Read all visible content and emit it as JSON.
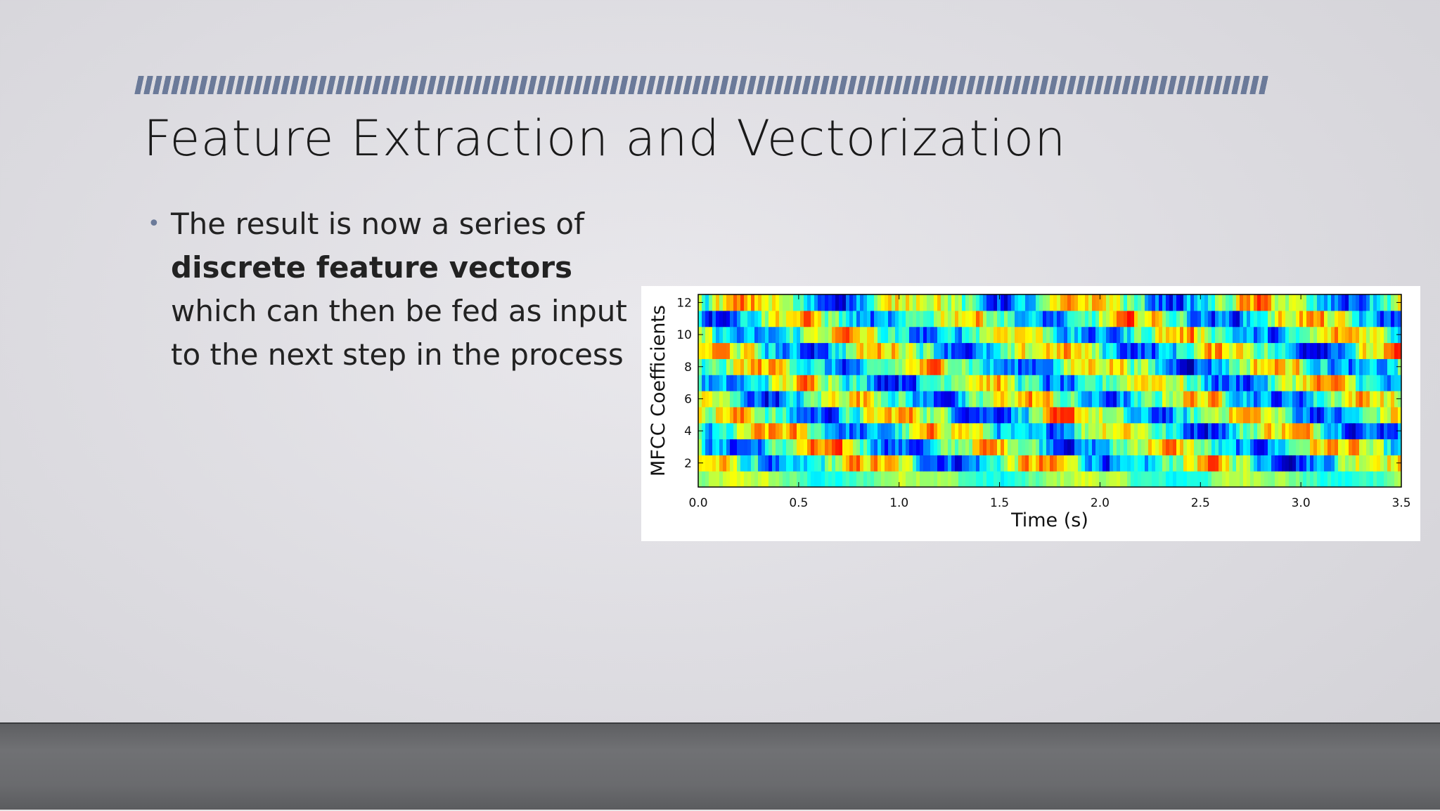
{
  "slide": {
    "title": "Feature Extraction and Vectorization",
    "bullet": {
      "pre": "The result is now a series of",
      "bold": "discrete feature vectors",
      "post": "which can then be fed as input to the next step in the process"
    }
  },
  "chart_data": {
    "type": "heatmap",
    "xlabel": "Time (s)",
    "ylabel": "MFCC Coefficients",
    "xlim": [
      0.0,
      3.5
    ],
    "ylim": [
      0.5,
      12.5
    ],
    "xticks": [
      "0.0",
      "0.5",
      "1.0",
      "1.5",
      "2.0",
      "2.5",
      "3.0",
      "3.5"
    ],
    "yticks": [
      "2",
      "4",
      "6",
      "8",
      "10",
      "12"
    ],
    "colormap": "jet",
    "rows": 12
  }
}
